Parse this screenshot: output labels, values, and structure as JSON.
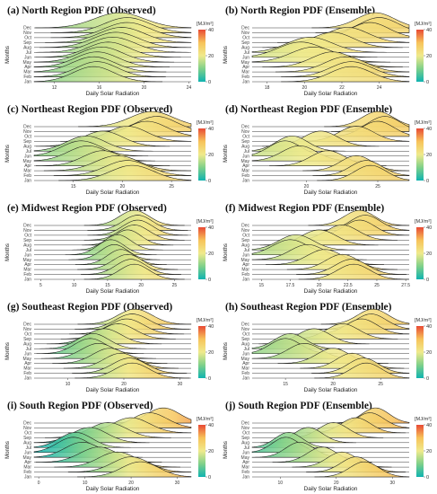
{
  "colorbar": {
    "label": "[MJ/m²]",
    "ticks": [
      "40",
      "20",
      "0"
    ],
    "range": [
      0,
      40
    ]
  },
  "colors": [
    "#10b3b0",
    "#7fd08a",
    "#f0ea8c",
    "#f7c35a",
    "#e84a35"
  ],
  "chart_data": [
    {
      "type": "ridgeline",
      "panel": "(a)",
      "title": "North Region PDF (Observed)",
      "xlabel": "Daily Solar Radiation",
      "ylabel": "Months",
      "xticks": [
        12,
        16,
        20,
        24
      ],
      "xlim": [
        10.2,
        24.2
      ],
      "months": [
        "Jan",
        "Feb",
        "Mar",
        "Apr",
        "May",
        "Jun",
        "Jul",
        "Aug",
        "Sep",
        "Oct",
        "Nov",
        "Dec"
      ],
      "peaks": [
        15.5,
        15.8,
        15.5,
        15.8,
        16.2,
        16.8,
        17.2,
        17.5,
        18.0,
        18.5,
        18.5,
        17.8
      ],
      "widths": [
        1.8,
        1.8,
        1.9,
        1.9,
        1.9,
        1.9,
        2.0,
        2.0,
        2.0,
        2.0,
        2.0,
        2.2
      ]
    },
    {
      "type": "ridgeline",
      "panel": "(b)",
      "title": "North Region PDF (Ensemble)",
      "xlabel": "Daily Solar Radiation",
      "ylabel": "Months",
      "xticks": [
        18,
        20,
        22,
        24
      ],
      "xlim": [
        17.2,
        25.6
      ],
      "months": [
        "Jan",
        "Feb",
        "Mar",
        "Apr",
        "May",
        "Jun",
        "Jul",
        "Aug",
        "Sep",
        "Oct",
        "Nov",
        "Dec"
      ],
      "peaks": [
        22.5,
        22.5,
        22.2,
        21.5,
        20.5,
        19.8,
        20.3,
        21.5,
        22.3,
        23.5,
        24.0,
        23.8
      ],
      "widths": [
        1.1,
        1.1,
        1.1,
        1.1,
        1.2,
        1.2,
        1.2,
        1.1,
        1.1,
        1.0,
        1.0,
        1.0
      ]
    },
    {
      "type": "ridgeline",
      "panel": "(c)",
      "title": "Northeast Region PDF (Observed)",
      "xlabel": "Daily Solar Radiation",
      "ylabel": "Months",
      "xticks": [
        15,
        20,
        25
      ],
      "xlim": [
        11,
        27
      ],
      "months": [
        "Jan",
        "Feb",
        "Mar",
        "Apr",
        "May",
        "Jun",
        "Jul",
        "Aug",
        "Sep",
        "Oct",
        "Nov",
        "Dec"
      ],
      "peaks": [
        21.0,
        20.5,
        19.5,
        18.0,
        16.5,
        15.8,
        16.3,
        18.0,
        20.5,
        22.5,
        23.5,
        23.0
      ],
      "widths": [
        2.2,
        2.2,
        2.2,
        2.0,
        2.0,
        2.0,
        2.0,
        2.0,
        2.0,
        2.0,
        2.0,
        2.2
      ]
    },
    {
      "type": "ridgeline",
      "panel": "(d)",
      "title": "Northeast Region PDF (Ensemble)",
      "xlabel": "Daily Solar Radiation",
      "ylabel": "Months",
      "xticks": [
        20,
        25
      ],
      "xlim": [
        16.2,
        27.2
      ],
      "months": [
        "Jan",
        "Feb",
        "Mar",
        "Apr",
        "May",
        "Jun",
        "Jul",
        "Aug",
        "Sep",
        "Oct",
        "Nov",
        "Dec"
      ],
      "peaks": [
        24.5,
        24.2,
        23.5,
        21.5,
        19.5,
        18.5,
        19.0,
        21.0,
        23.5,
        25.0,
        25.5,
        25.0
      ],
      "widths": [
        1.1,
        1.1,
        1.1,
        1.2,
        1.2,
        1.1,
        1.1,
        1.2,
        1.2,
        1.1,
        1.1,
        1.1
      ]
    },
    {
      "type": "ridgeline",
      "panel": "(e)",
      "title": "Midwest Region PDF (Observed)",
      "xlabel": "Daily Solar Radiation",
      "ylabel": "Months",
      "xticks": [
        5,
        10,
        15,
        20,
        25
      ],
      "xlim": [
        4,
        27.5
      ],
      "months": [
        "Jan",
        "Feb",
        "Mar",
        "Apr",
        "May",
        "Jun",
        "Jul",
        "Aug",
        "Sep",
        "Oct",
        "Nov",
        "Dec"
      ],
      "peaks": [
        19.0,
        18.5,
        18.0,
        17.0,
        16.0,
        15.5,
        16.5,
        18.0,
        19.0,
        19.5,
        19.5,
        19.0
      ],
      "widths": [
        2.2,
        2.2,
        2.2,
        2.0,
        2.0,
        2.0,
        2.0,
        2.0,
        2.2,
        2.2,
        2.2,
        2.2
      ]
    },
    {
      "type": "ridgeline",
      "panel": "(f)",
      "title": "Midwest Region PDF (Ensemble)",
      "xlabel": "Daily Solar Radiation",
      "ylabel": "Months",
      "xticks": [
        15.0,
        17.5,
        20.0,
        22.5,
        25.0,
        27.5
      ],
      "xlim": [
        14.2,
        27.8
      ],
      "months": [
        "Jan",
        "Feb",
        "Mar",
        "Apr",
        "May",
        "Jun",
        "Jul",
        "Aug",
        "Sep",
        "Oct",
        "Nov",
        "Dec"
      ],
      "peaks": [
        23.0,
        22.8,
        22.0,
        20.5,
        19.0,
        17.5,
        18.0,
        20.0,
        22.0,
        23.5,
        24.0,
        23.5
      ],
      "widths": [
        1.4,
        1.4,
        1.4,
        1.5,
        1.5,
        1.5,
        1.5,
        1.5,
        1.4,
        1.3,
        1.3,
        1.3
      ]
    },
    {
      "type": "ridgeline",
      "panel": "(g)",
      "title": "Southeast Region PDF (Observed)",
      "xlabel": "Daily Solar Radiation",
      "ylabel": "Months",
      "xticks": [
        10,
        20,
        30
      ],
      "xlim": [
        4,
        32
      ],
      "months": [
        "Jan",
        "Feb",
        "Mar",
        "Apr",
        "May",
        "Jun",
        "Jul",
        "Aug",
        "Sep",
        "Oct",
        "Nov",
        "Dec"
      ],
      "peaks": [
        21.5,
        21.0,
        19.5,
        17.5,
        15.5,
        14.0,
        14.5,
        16.5,
        19.0,
        20.5,
        21.5,
        22.0
      ],
      "widths": [
        3.0,
        3.0,
        3.0,
        3.0,
        3.0,
        2.8,
        2.8,
        3.0,
        3.0,
        3.0,
        3.0,
        3.0
      ]
    },
    {
      "type": "ridgeline",
      "panel": "(h)",
      "title": "Southeast Region PDF (Ensemble)",
      "xlabel": "Daily Solar Radiation",
      "ylabel": "Months",
      "xticks": [
        15,
        20,
        25
      ],
      "xlim": [
        11.5,
        28
      ],
      "months": [
        "Jan",
        "Feb",
        "Mar",
        "Apr",
        "May",
        "Jun",
        "Jul",
        "Aug",
        "Sep",
        "Oct",
        "Nov",
        "Dec"
      ],
      "peaks": [
        23.5,
        23.2,
        22.0,
        20.0,
        17.0,
        15.0,
        15.5,
        18.0,
        21.0,
        23.0,
        24.0,
        24.2
      ],
      "widths": [
        1.6,
        1.6,
        1.6,
        1.7,
        1.7,
        1.6,
        1.6,
        1.7,
        1.7,
        1.6,
        1.6,
        1.6
      ]
    },
    {
      "type": "ridgeline",
      "panel": "(i)",
      "title": "South Region PDF (Observed)",
      "xlabel": "Daily Solar Radiation",
      "ylabel": "Months",
      "xticks": [
        0,
        10,
        20,
        30
      ],
      "xlim": [
        -1,
        33
      ],
      "months": [
        "Jan",
        "Feb",
        "Mar",
        "Apr",
        "May",
        "Jun",
        "Jul",
        "Aug",
        "Sep",
        "Oct",
        "Nov",
        "Dec"
      ],
      "peaks": [
        22.0,
        20.0,
        17.0,
        13.0,
        9.5,
        7.5,
        8.0,
        11.0,
        15.0,
        20.0,
        24.0,
        27.0
      ],
      "widths": [
        4.0,
        4.0,
        4.0,
        4.0,
        3.8,
        3.5,
        3.5,
        3.8,
        4.0,
        4.0,
        3.8,
        3.5
      ]
    },
    {
      "type": "ridgeline",
      "panel": "(j)",
      "title": "South Region PDF (Ensemble)",
      "xlabel": "Daily Solar Radiation",
      "ylabel": "Months",
      "xticks": [
        10,
        20,
        30
      ],
      "xlim": [
        5,
        33
      ],
      "months": [
        "Jan",
        "Feb",
        "Mar",
        "Apr",
        "May",
        "Jun",
        "Jul",
        "Aug",
        "Sep",
        "Oct",
        "Nov",
        "Dec"
      ],
      "peaks": [
        25.0,
        23.5,
        21.0,
        17.5,
        13.5,
        11.0,
        11.5,
        15.0,
        19.5,
        23.5,
        26.0,
        27.0
      ],
      "widths": [
        2.6,
        2.6,
        2.6,
        2.6,
        2.5,
        2.4,
        2.4,
        2.5,
        2.6,
        2.6,
        2.5,
        2.4
      ]
    }
  ]
}
